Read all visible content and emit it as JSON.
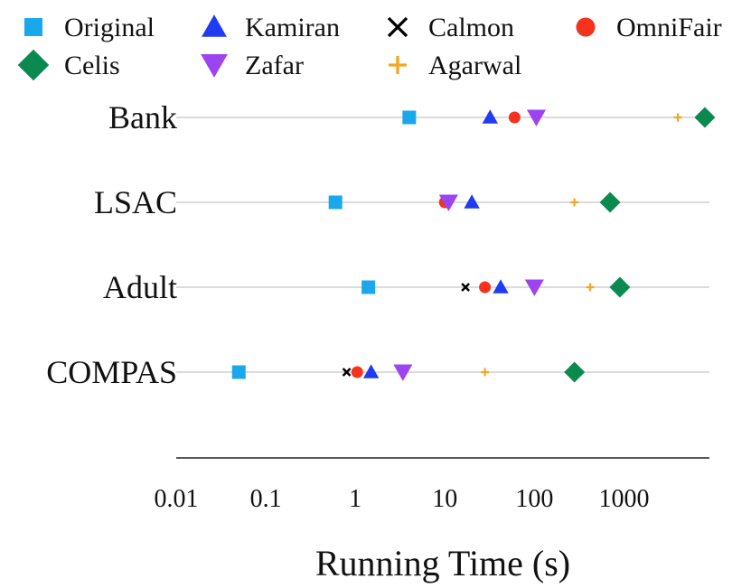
{
  "chart_data": {
    "type": "scatter",
    "title": "",
    "xlabel": "Running Time (s)",
    "ylabel": "",
    "x_scale": "log",
    "xlim": [
      0.01,
      9000
    ],
    "x_ticks": [
      0.01,
      0.1,
      1,
      10,
      100,
      1000
    ],
    "x_tick_labels": [
      "0.01",
      "0.1",
      "1",
      "10",
      "100",
      "1000"
    ],
    "categories": [
      "Bank",
      "LSAC",
      "Adult",
      "COMPAS"
    ],
    "legend_position": "top",
    "series": [
      {
        "name": "Original",
        "marker": "square",
        "color": "#1aa7ec",
        "values": [
          4,
          0.6,
          1.4,
          0.05
        ]
      },
      {
        "name": "Kamiran",
        "marker": "triangle-up",
        "color": "#1f3cf2",
        "values": [
          32,
          20,
          42,
          1.5
        ]
      },
      {
        "name": "Calmon",
        "marker": "x",
        "color": "#000000",
        "values": [
          null,
          null,
          17,
          0.8
        ]
      },
      {
        "name": "OmniFair",
        "marker": "circle",
        "color": "#f5321c",
        "values": [
          60,
          10,
          28,
          1.05
        ]
      },
      {
        "name": "Celis",
        "marker": "diamond",
        "color": "#0b8a4f",
        "values": [
          8000,
          700,
          900,
          280
        ]
      },
      {
        "name": "Zafar",
        "marker": "triangle-down",
        "color": "#9b44f0",
        "values": [
          105,
          11,
          100,
          3.4
        ]
      },
      {
        "name": "Agarwal",
        "marker": "plus",
        "color": "#f5a623",
        "values": [
          4000,
          280,
          420,
          28
        ]
      }
    ]
  }
}
